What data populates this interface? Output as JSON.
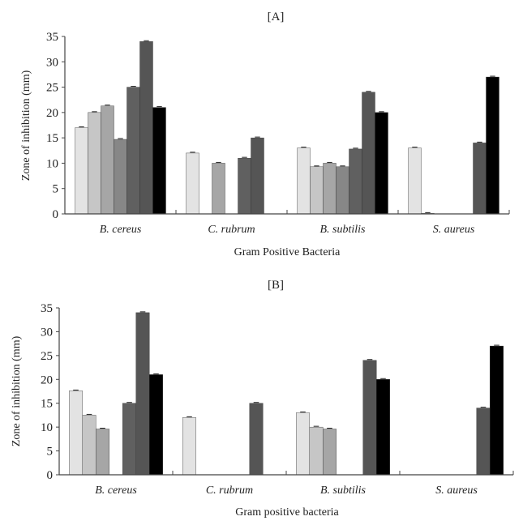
{
  "chart_data": [
    {
      "type": "bar",
      "title": "[A]",
      "xlabel": "Gram Positive Bacteria",
      "ylabel": "Zone of inhibition (mm)",
      "ylim": [
        0,
        35
      ],
      "yticks": [
        "0",
        "5",
        "10",
        "15",
        "20",
        "25",
        "30",
        "35"
      ],
      "categories": [
        "B. cereus",
        "C. rubrum",
        "B. subtilis",
        "S. aureus"
      ],
      "series_colors": [
        "#e3e3e3",
        "#c6c6c6",
        "#a6a6a6",
        "#878787",
        "#606060",
        "#555555",
        "#000000"
      ],
      "series": [
        {
          "values": [
            17,
            12,
            13,
            13
          ]
        },
        {
          "values": [
            20,
            0,
            9.3,
            0.1
          ]
        },
        {
          "values": [
            21.3,
            10,
            10,
            0
          ]
        },
        {
          "values": [
            14.7,
            0,
            9.3,
            0
          ]
        },
        {
          "values": [
            25,
            11,
            12.8,
            0
          ]
        },
        {
          "values": [
            34,
            15,
            24,
            14
          ]
        },
        {
          "values": [
            21,
            0,
            20,
            27
          ]
        }
      ],
      "grid": false
    },
    {
      "type": "bar",
      "title": "[B]",
      "xlabel": "Gram positive bacteria",
      "ylabel": "Zone of inhibition (mm)",
      "ylim": [
        0,
        35
      ],
      "yticks": [
        "0",
        "5",
        "10",
        "15",
        "20",
        "25",
        "30",
        "35"
      ],
      "categories": [
        "B. cereus",
        "C. rubrum",
        "B. subtilis",
        "S. aureus"
      ],
      "series_colors": [
        "#e3e3e3",
        "#c6c6c6",
        "#a6a6a6",
        "#878787",
        "#606060",
        "#555555",
        "#000000"
      ],
      "series": [
        {
          "values": [
            17.6,
            12,
            13,
            0
          ]
        },
        {
          "values": [
            12.5,
            0,
            10,
            0
          ]
        },
        {
          "values": [
            9.6,
            0,
            9.6,
            0
          ]
        },
        {
          "values": [
            0,
            0,
            0,
            0
          ]
        },
        {
          "values": [
            15,
            0,
            0,
            0
          ]
        },
        {
          "values": [
            34,
            15,
            24,
            14
          ]
        },
        {
          "values": [
            21,
            0,
            20,
            27
          ]
        }
      ],
      "grid": false
    }
  ]
}
